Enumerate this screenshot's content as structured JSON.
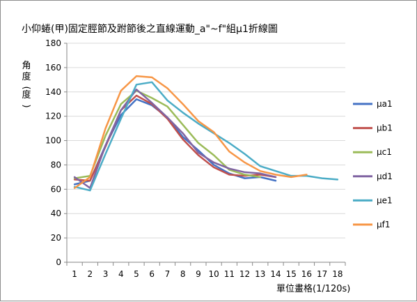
{
  "chart_data": {
    "type": "line",
    "title": "小仰蜷(甲)固定脛節及跗節後之直線運動_a\"~f\"組μ1折線圖",
    "ylabel": "角度(度)",
    "xlabel": "單位畫格(1/120s)",
    "ylim": [
      0,
      180
    ],
    "yticks": [
      0,
      20,
      40,
      60,
      80,
      100,
      120,
      140,
      160,
      180
    ],
    "categories": [
      "1",
      "2",
      "3",
      "4",
      "5",
      "6",
      "7",
      "8",
      "9",
      "10",
      "11",
      "12",
      "13",
      "14",
      "15",
      "16",
      "17",
      "18"
    ],
    "grid": true,
    "legend_position": "right",
    "series": [
      {
        "name": "μa1",
        "color": "#4472C4",
        "values": [
          64,
          67,
          96,
          121,
          134,
          129,
          119,
          103,
          92,
          80,
          73,
          69,
          70,
          67,
          null,
          null,
          null,
          null
        ]
      },
      {
        "name": "μb1",
        "color": "#C0504D",
        "values": [
          68,
          67,
          95,
          125,
          137,
          130,
          118,
          101,
          88,
          78,
          72,
          71,
          72,
          70,
          null,
          null,
          null,
          null
        ]
      },
      {
        "name": "μc1",
        "color": "#9BBB59",
        "values": [
          69,
          71,
          104,
          130,
          141,
          135,
          128,
          113,
          98,
          88,
          76,
          72,
          70,
          null,
          null,
          null,
          null,
          null
        ]
      },
      {
        "name": "μd1",
        "color": "#8064A2",
        "values": [
          70,
          61,
          96,
          125,
          142,
          131,
          119,
          106,
          90,
          82,
          77,
          74,
          73,
          70,
          null,
          null,
          null,
          null
        ]
      },
      {
        "name": "μe1",
        "color": "#4BACC6",
        "values": [
          62,
          59,
          89,
          118,
          146,
          148,
          133,
          123,
          114,
          106,
          98,
          89,
          79,
          75,
          71,
          71,
          69,
          68
        ]
      },
      {
        "name": "μf1",
        "color": "#F79646",
        "values": [
          61,
          70,
          110,
          141,
          153,
          152,
          143,
          130,
          116,
          107,
          91,
          82,
          75,
          72,
          70,
          72,
          null,
          null
        ]
      }
    ]
  }
}
